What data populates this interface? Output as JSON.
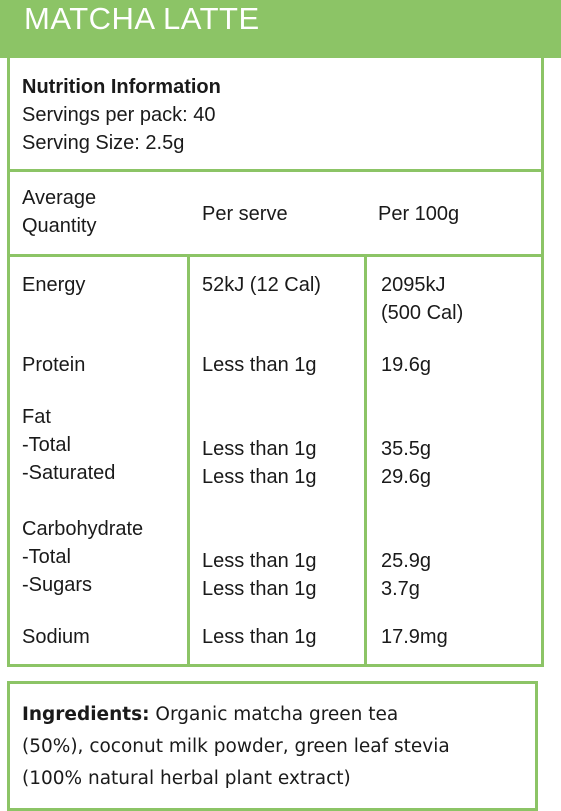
{
  "product": {
    "title": "MATCHA LATTE"
  },
  "nutrition": {
    "heading": "Nutrition Information",
    "servings_per_pack": "Servings per pack: 40",
    "serving_size": "Serving Size: 2.5g",
    "columns": {
      "quantity_line1": "Average",
      "quantity_line2": "Quantity",
      "per_serve": "Per serve",
      "per_100g": "Per 100g"
    },
    "rows": {
      "energy": {
        "label": "Energy",
        "per_serve": "52kJ (12 Cal)",
        "per_100g_line1": "2095kJ",
        "per_100g_line2": "(500 Cal)"
      },
      "protein": {
        "label": "Protein",
        "per_serve": "Less than 1g",
        "per_100g": "19.6g"
      },
      "fat": {
        "label": "Fat"
      },
      "fat_total": {
        "label": "-Total",
        "per_serve": "Less than 1g",
        "per_100g": "35.5g"
      },
      "fat_saturated": {
        "label": "-Saturated",
        "per_serve": "Less than 1g",
        "per_100g": "29.6g"
      },
      "carbohydrate": {
        "label": "Carbohydrate"
      },
      "carb_total": {
        "label": "-Total",
        "per_serve": "Less than 1g",
        "per_100g": "25.9g"
      },
      "carb_sugars": {
        "label": "-Sugars",
        "per_serve": "Less than 1g",
        "per_100g": "3.7g"
      },
      "sodium": {
        "label": "Sodium",
        "per_serve": "Less than 1g",
        "per_100g": "17.9mg"
      }
    }
  },
  "ingredients": {
    "label": "Ingredients:",
    "line1": " Organic matcha green tea",
    "line2": "(50%), coconut milk powder, green leaf stevia",
    "line3": "(100% natural herbal plant extract)"
  },
  "colors": {
    "accent_green": "#8cc466",
    "text": "#1a1a1a"
  }
}
